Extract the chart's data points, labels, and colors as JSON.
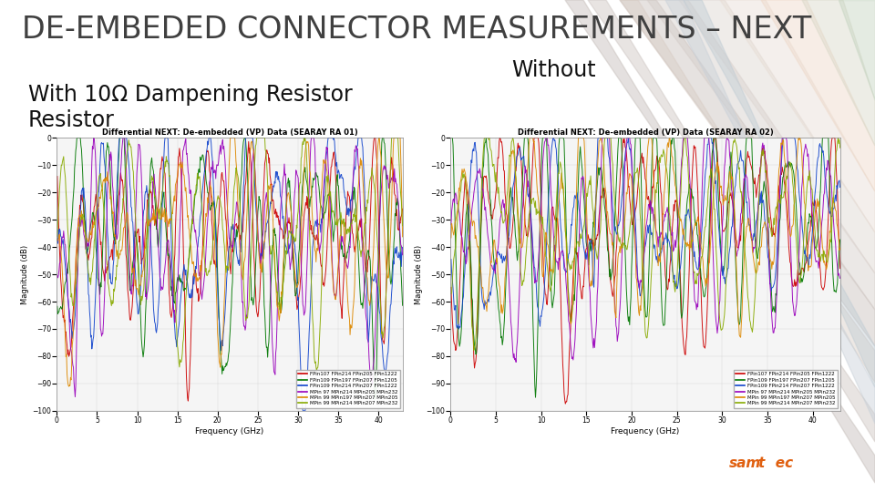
{
  "title": "DE-EMBEDED CONNECTOR MEASUREMENTS – NEXT",
  "title_fontsize": 24,
  "title_color": "#404040",
  "left_label": "With 10Ω Dampening Resistor\nResistor",
  "right_label": "Without",
  "label_fontsize": 17,
  "label_color": "#111111",
  "left_chart_title": "Differential NEXT: De-embedded (VP) Data (SEARAY RA 01)",
  "right_chart_title": "Differential NEXT: De-embedded (VP) Data (SEARAY RA 02)",
  "chart_title_fontsize": 6.0,
  "xlabel": "Frequency (GHz)",
  "ylabel": "Magnitude (dB)",
  "xlabel_fontsize": 6.5,
  "ylabel_fontsize": 6.0,
  "tick_fontsize": 5.5,
  "xlim": [
    0,
    43
  ],
  "ylim": [
    -100,
    0
  ],
  "xticks": [
    0,
    5,
    10,
    15,
    20,
    25,
    30,
    35,
    40
  ],
  "yticks": [
    0,
    -10,
    -20,
    -30,
    -40,
    -50,
    -60,
    -70,
    -80,
    -90,
    -100
  ],
  "legend_entries": [
    "FPin107 FPin214 FPin205 FPin1222",
    "FPin109 FPin197 FPin207 FPin1205",
    "FPin109 FPin214 FPin207 FPin1222",
    "MPin 97 MPin214 MPin205 MPin232",
    "MPin 99 MPin197 MPin207 MPin205",
    "MPin 99 MPin214 MPin207 MPin232"
  ],
  "legend_colors": [
    "#cc0000",
    "#007700",
    "#1144cc",
    "#9900bb",
    "#dd8800",
    "#88aa00"
  ],
  "legend_fontsize": 4.0,
  "background_color": "#ffffff",
  "slide_bg": "#ffffff",
  "bottom_bar_color": "#1a1a1a",
  "stripe_colors": [
    "#dfc8b8",
    "#d0c0b0",
    "#c4b8b0",
    "#dde0d0",
    "#c8d4d8",
    "#e8c8b8",
    "#d8c0b8"
  ],
  "stripe_alpha": 0.55,
  "samtec_color": "#e06010",
  "seed": 42,
  "n_points": 600
}
